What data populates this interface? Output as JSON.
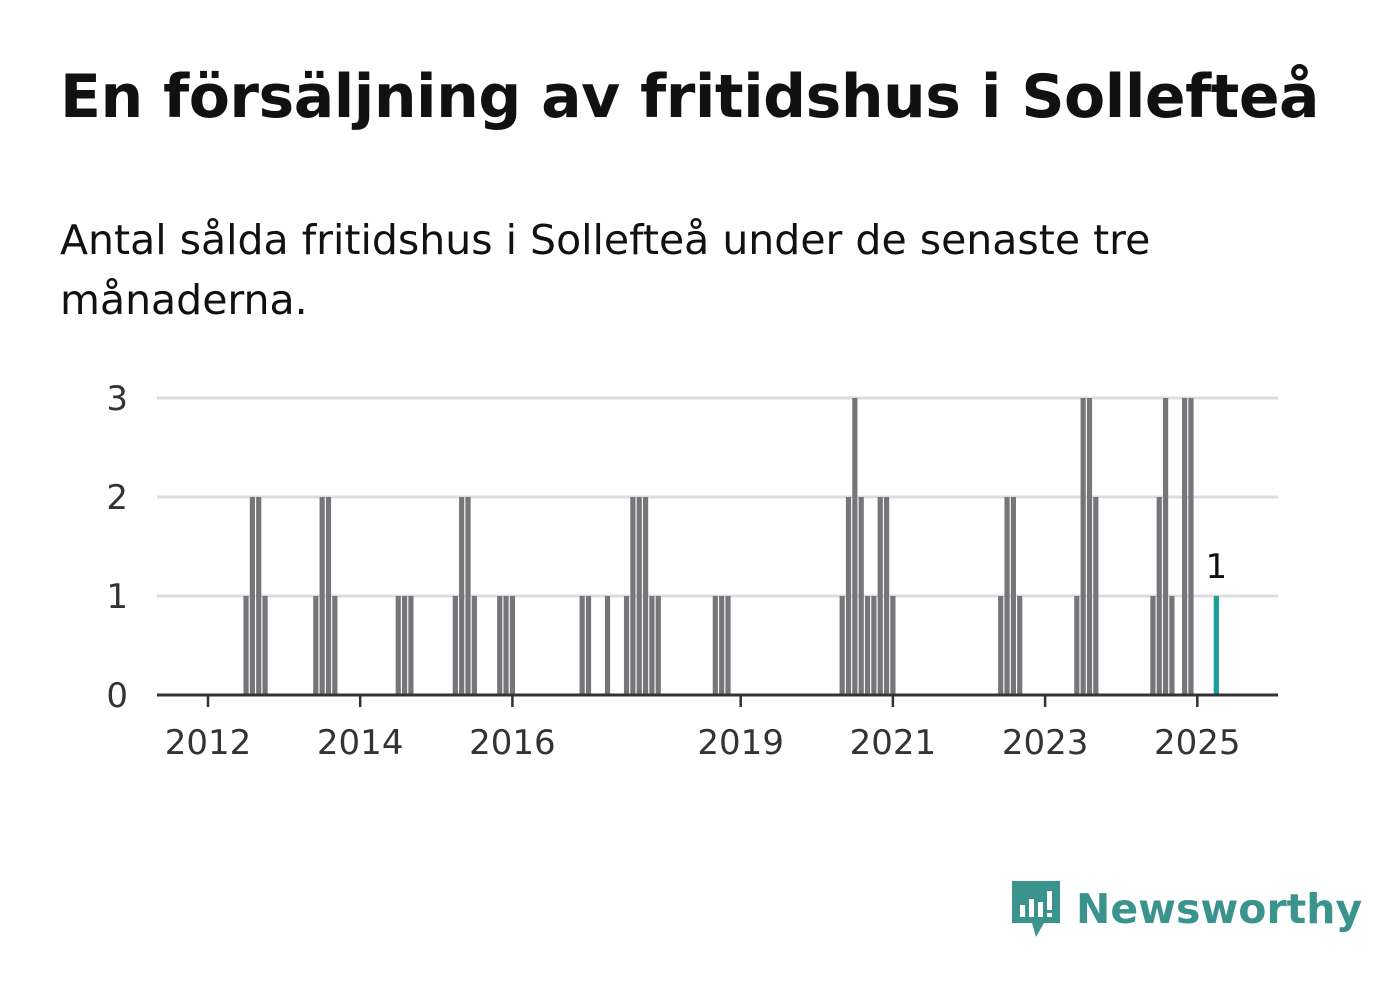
{
  "title": "En försäljning av fritidshus i Sollefteå",
  "subtitle": "Antal sålda fritidshus i Sollefteå under de senaste tre månaderna.",
  "brand": {
    "name": "Newsworthy",
    "icon": "newsworthy-logo-icon",
    "color": "#3b938e"
  },
  "colors": {
    "bar": "#76767a",
    "highlight": "#1a9f96",
    "grid": "#dddddd",
    "baseline": "#333333"
  },
  "chart_data": {
    "type": "bar",
    "ylim": [
      0,
      3
    ],
    "yticks": [
      0,
      1,
      2,
      3
    ],
    "xticks": [
      {
        "year": 2012,
        "label": "2012"
      },
      {
        "year": 2014,
        "label": "2014"
      },
      {
        "year": 2016,
        "label": "2016"
      },
      {
        "year": 2019,
        "label": "2019"
      },
      {
        "year": 2021,
        "label": "2021"
      },
      {
        "year": 2023,
        "label": "2023"
      },
      {
        "year": 2025,
        "label": "2025"
      }
    ],
    "grid": true,
    "bars": [
      {
        "date": "2012-07",
        "value": 1
      },
      {
        "date": "2012-08",
        "value": 2
      },
      {
        "date": "2012-09",
        "value": 2
      },
      {
        "date": "2012-10",
        "value": 1
      },
      {
        "date": "2013-06",
        "value": 1
      },
      {
        "date": "2013-07",
        "value": 2
      },
      {
        "date": "2013-08",
        "value": 2
      },
      {
        "date": "2013-09",
        "value": 1
      },
      {
        "date": "2014-07",
        "value": 1
      },
      {
        "date": "2014-08",
        "value": 1
      },
      {
        "date": "2014-09",
        "value": 1
      },
      {
        "date": "2015-04",
        "value": 1
      },
      {
        "date": "2015-05",
        "value": 2
      },
      {
        "date": "2015-06",
        "value": 2
      },
      {
        "date": "2015-07",
        "value": 1
      },
      {
        "date": "2015-11",
        "value": 1
      },
      {
        "date": "2015-12",
        "value": 1
      },
      {
        "date": "2016-01",
        "value": 1
      },
      {
        "date": "2016-12",
        "value": 1
      },
      {
        "date": "2017-01",
        "value": 1
      },
      {
        "date": "2017-04",
        "value": 1
      },
      {
        "date": "2017-07",
        "value": 1
      },
      {
        "date": "2017-08",
        "value": 2
      },
      {
        "date": "2017-09",
        "value": 2
      },
      {
        "date": "2017-10",
        "value": 2
      },
      {
        "date": "2017-11",
        "value": 1
      },
      {
        "date": "2017-12",
        "value": 1
      },
      {
        "date": "2018-09",
        "value": 1
      },
      {
        "date": "2018-10",
        "value": 1
      },
      {
        "date": "2018-11",
        "value": 1
      },
      {
        "date": "2020-05",
        "value": 1
      },
      {
        "date": "2020-06",
        "value": 2
      },
      {
        "date": "2020-07",
        "value": 3
      },
      {
        "date": "2020-08",
        "value": 2
      },
      {
        "date": "2020-09",
        "value": 1
      },
      {
        "date": "2020-10",
        "value": 1
      },
      {
        "date": "2020-11",
        "value": 2
      },
      {
        "date": "2020-12",
        "value": 2
      },
      {
        "date": "2021-01",
        "value": 1
      },
      {
        "date": "2022-06",
        "value": 1
      },
      {
        "date": "2022-07",
        "value": 2
      },
      {
        "date": "2022-08",
        "value": 2
      },
      {
        "date": "2022-09",
        "value": 1
      },
      {
        "date": "2023-06",
        "value": 1
      },
      {
        "date": "2023-07",
        "value": 3
      },
      {
        "date": "2023-08",
        "value": 3
      },
      {
        "date": "2023-09",
        "value": 2
      },
      {
        "date": "2024-06",
        "value": 1
      },
      {
        "date": "2024-07",
        "value": 2
      },
      {
        "date": "2024-08",
        "value": 3
      },
      {
        "date": "2024-09",
        "value": 1
      },
      {
        "date": "2024-11",
        "value": 3
      },
      {
        "date": "2024-12",
        "value": 3
      },
      {
        "date": "2025-04",
        "value": 1,
        "highlight": true,
        "label": "1"
      }
    ]
  }
}
